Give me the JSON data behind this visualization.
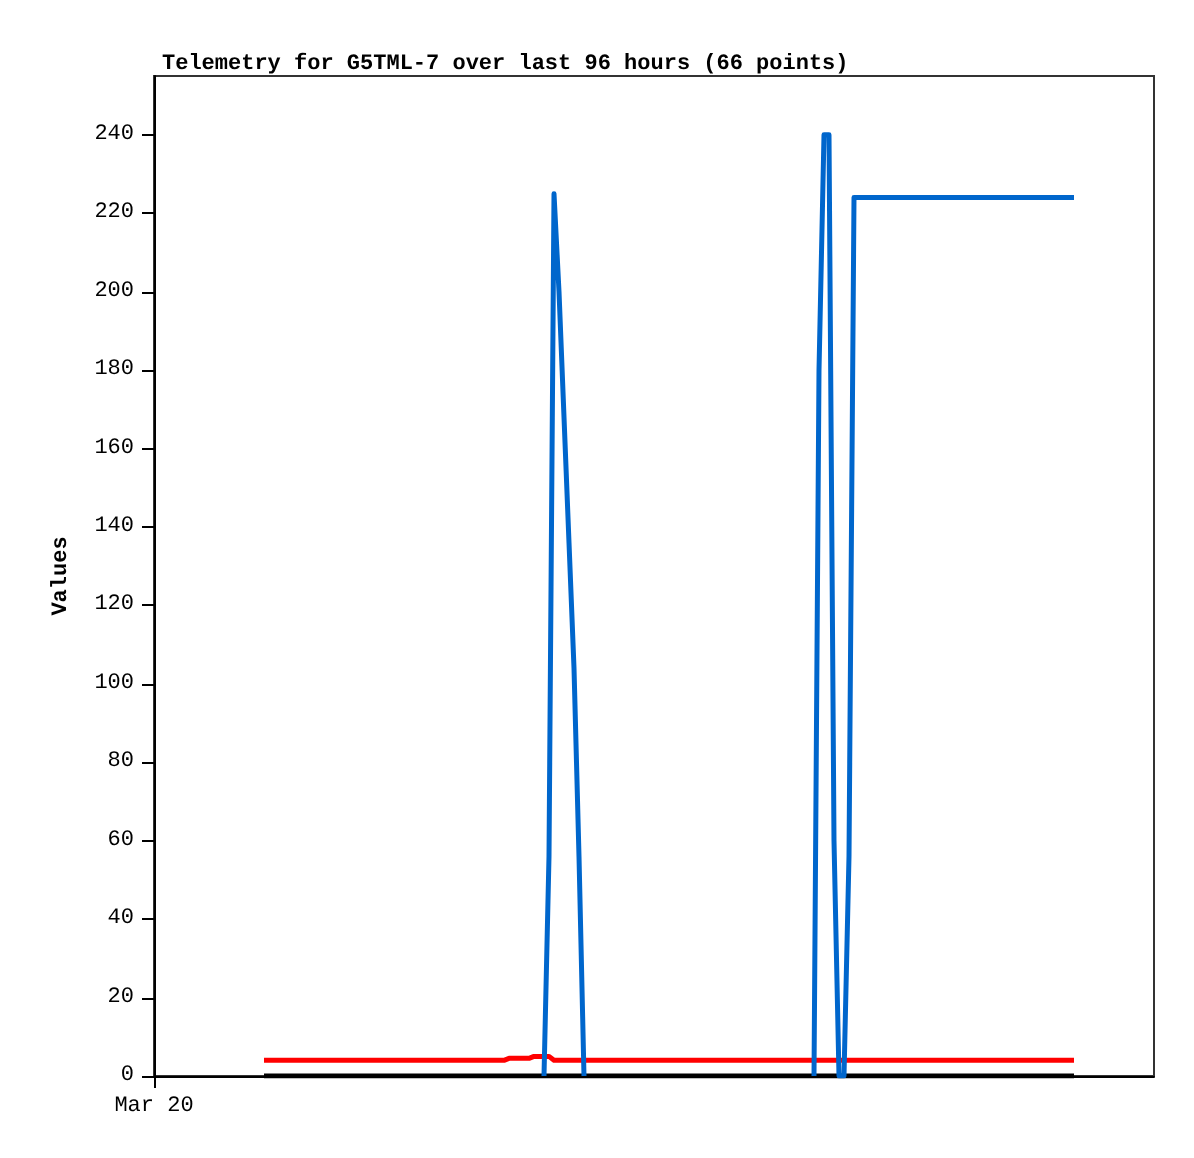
{
  "chart_data": {
    "type": "line",
    "title": "Telemetry for G5TML-7 over last 96 hours (66 points)",
    "ylabel": "Values",
    "annotations": [
      "Mar 20"
    ],
    "categories": [
      null,
      null,
      null,
      null,
      null,
      null,
      null,
      null,
      null,
      null,
      null,
      null,
      null,
      null,
      null,
      null,
      null,
      null,
      null,
      null,
      null,
      null,
      null,
      null,
      null,
      null,
      null,
      null,
      null,
      null,
      null,
      null,
      null,
      null,
      null,
      null,
      null,
      null,
      null,
      null,
      null,
      null,
      null,
      null,
      null,
      null,
      null,
      null,
      null,
      null,
      null,
      null,
      null,
      null,
      null,
      null,
      null,
      null,
      null,
      null,
      null,
      null,
      null,
      null,
      null,
      null,
      null,
      null,
      null,
      null,
      null,
      null,
      null,
      null,
      null,
      null,
      null,
      null,
      null,
      null,
      null,
      null,
      null,
      null,
      null,
      null,
      null,
      null,
      null,
      null,
      null,
      null,
      null,
      null,
      null,
      null,
      null,
      null,
      null,
      null,
      null,
      null,
      null,
      null,
      null,
      null,
      null,
      null,
      null,
      null,
      null,
      null,
      null,
      null,
      null,
      null,
      null,
      null,
      null,
      null,
      null,
      null,
      null,
      null,
      null,
      null,
      null,
      null,
      null,
      null,
      null,
      null,
      null,
      null,
      null,
      null,
      null,
      null,
      null,
      null,
      null,
      null,
      null,
      null,
      null,
      null,
      null,
      null,
      null,
      null,
      null,
      null,
      null,
      null,
      null,
      null,
      null,
      null,
      null,
      null,
      null,
      null,
      null,
      null,
      null,
      null,
      null,
      null,
      null,
      null,
      null,
      null,
      null,
      null,
      null,
      null,
      null,
      null,
      null,
      null,
      null,
      null,
      null,
      null,
      null,
      null,
      null,
      null,
      null,
      null,
      null,
      null,
      null,
      null,
      null,
      null,
      null,
      null,
      null,
      null,
      null
    ],
    "ylim": [
      0,
      255
    ],
    "yticks": [
      0,
      20,
      40,
      60,
      80,
      100,
      120,
      140,
      160,
      180,
      200,
      220,
      240
    ],
    "grid": false,
    "marker": "none",
    "line_style": "solid",
    "series": [
      {
        "color": "#ff0000",
        "values": [
          null,
          null,
          null,
          null,
          null,
          null,
          null,
          null,
          null,
          null,
          null,
          null,
          null,
          null,
          null,
          null,
          null,
          null,
          null,
          null,
          null,
          null,
          4,
          4,
          4,
          4,
          4,
          4,
          4,
          4,
          4,
          4,
          4,
          4,
          4,
          4,
          4,
          4,
          4,
          4,
          4,
          4,
          4,
          4,
          4,
          4,
          4,
          4,
          4,
          4,
          4,
          4,
          4,
          4,
          4,
          4,
          4,
          4,
          4,
          4,
          4,
          4,
          4,
          4,
          4,
          4,
          4,
          4,
          4,
          4,
          4,
          4.5,
          4.5,
          4.5,
          4.5,
          4.5,
          5,
          5,
          5,
          5,
          4,
          4,
          4,
          4,
          4,
          4,
          4,
          4,
          4,
          4,
          4,
          4,
          4,
          4,
          4,
          4,
          4,
          4,
          4,
          4,
          4,
          4,
          4,
          4,
          4,
          4,
          4,
          4,
          4,
          4,
          4,
          4,
          4,
          4,
          4,
          4,
          4,
          4,
          4,
          4,
          4,
          4,
          4,
          4,
          4,
          4,
          4,
          4,
          4,
          4,
          4,
          4,
          4,
          4,
          4,
          4,
          4,
          4,
          4,
          4,
          4,
          4,
          4,
          4,
          4,
          4,
          4,
          4,
          4,
          4,
          4,
          4,
          4,
          4,
          4,
          4,
          4,
          4,
          4,
          4,
          4,
          4,
          4,
          4,
          4,
          4,
          4,
          4,
          4,
          4,
          4,
          4,
          4,
          4,
          4,
          4,
          4,
          4,
          4,
          4,
          4,
          4,
          4,
          4,
          4,
          null,
          null,
          null,
          null,
          null,
          null,
          null,
          null,
          null,
          null,
          null,
          null,
          null,
          null,
          null,
          null
        ]
      },
      {
        "color": "#000000",
        "values": [
          null,
          null,
          null,
          null,
          null,
          null,
          null,
          null,
          null,
          null,
          null,
          null,
          null,
          null,
          null,
          null,
          null,
          null,
          null,
          null,
          null,
          null,
          0,
          0,
          0,
          0,
          0,
          0,
          0,
          0,
          0,
          0,
          0,
          0,
          0,
          0,
          0,
          0,
          0,
          0,
          0,
          0,
          0,
          0,
          0,
          0,
          0,
          0,
          0,
          0,
          0,
          0,
          0,
          0,
          0,
          0,
          0,
          0,
          0,
          0,
          0,
          0,
          0,
          0,
          0,
          0,
          0,
          0,
          0,
          0,
          0,
          0,
          0,
          0,
          0,
          0,
          0,
          0,
          0,
          0,
          0,
          0,
          0,
          0,
          0,
          0,
          0,
          0,
          0,
          0,
          0,
          0,
          0,
          0,
          0,
          0,
          0,
          0,
          0,
          0,
          0,
          0,
          0,
          0,
          0,
          0,
          0,
          0,
          0,
          0,
          0,
          0,
          0,
          0,
          0,
          0,
          0,
          0,
          0,
          0,
          0,
          0,
          0,
          0,
          0,
          0,
          0,
          0,
          0,
          0,
          0,
          0,
          0,
          0,
          0,
          0,
          0,
          0,
          0,
          0,
          0,
          0,
          0,
          0,
          0,
          0,
          0,
          0,
          0,
          0,
          0,
          0,
          0,
          0,
          0,
          0,
          0,
          0,
          0,
          0,
          0,
          0,
          0,
          0,
          0,
          0,
          0,
          0,
          0,
          0,
          0,
          0,
          0,
          0,
          0,
          0,
          0,
          0,
          0,
          0,
          0,
          0,
          0,
          0,
          0,
          null,
          null,
          null,
          null,
          null,
          null,
          null,
          null,
          null,
          null,
          null,
          null,
          null,
          null,
          null,
          null
        ]
      },
      {
        "color": "#0066cc",
        "values": [
          null,
          null,
          null,
          null,
          null,
          null,
          null,
          null,
          null,
          null,
          null,
          null,
          null,
          null,
          null,
          null,
          null,
          null,
          null,
          null,
          null,
          null,
          null,
          null,
          null,
          null,
          null,
          null,
          null,
          null,
          null,
          null,
          null,
          null,
          null,
          null,
          null,
          null,
          null,
          null,
          null,
          null,
          null,
          null,
          null,
          null,
          null,
          null,
          null,
          null,
          null,
          null,
          null,
          null,
          null,
          null,
          null,
          null,
          null,
          null,
          null,
          null,
          null,
          null,
          null,
          null,
          null,
          null,
          null,
          null,
          null,
          null,
          null,
          null,
          null,
          null,
          null,
          null,
          0,
          56,
          225,
          200,
          168,
          136,
          104,
          56,
          0,
          null,
          null,
          null,
          null,
          null,
          null,
          null,
          null,
          null,
          null,
          null,
          null,
          null,
          null,
          null,
          null,
          null,
          null,
          null,
          null,
          null,
          null,
          null,
          null,
          null,
          null,
          null,
          null,
          null,
          null,
          null,
          null,
          null,
          null,
          null,
          null,
          null,
          null,
          null,
          null,
          null,
          null,
          null,
          null,
          null,
          0,
          180,
          240,
          240,
          60,
          0,
          0,
          56,
          224,
          224,
          224,
          224,
          224,
          224,
          224,
          224,
          224,
          224,
          224,
          224,
          224,
          224,
          224,
          224,
          224,
          224,
          224,
          224,
          224,
          224,
          224,
          224,
          224,
          224,
          224,
          224,
          224,
          224,
          224,
          224,
          224,
          224,
          224,
          224,
          224,
          224,
          224,
          224,
          224,
          224,
          224,
          224,
          224,
          null,
          null,
          null,
          null,
          null,
          null,
          null,
          null,
          null,
          null,
          null,
          null,
          null,
          null,
          null,
          null
        ]
      }
    ]
  }
}
